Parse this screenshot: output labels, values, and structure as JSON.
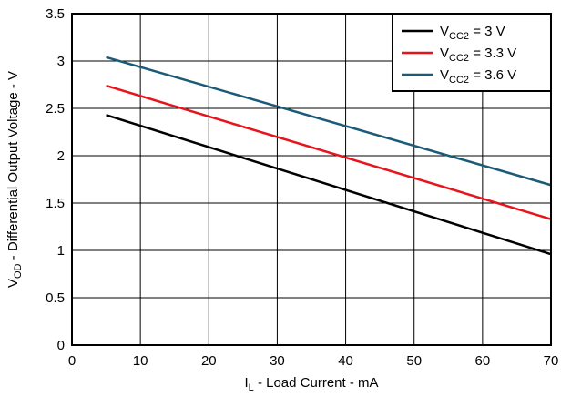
{
  "chart_data": {
    "type": "line",
    "title": "",
    "xlabel": {
      "main": "I",
      "sub": "L",
      "rest": " - Load Current - mA"
    },
    "ylabel": {
      "main": "V",
      "sub": "OD",
      "rest": " - Differential Output Voltage - V"
    },
    "xlim": [
      0,
      70
    ],
    "ylim": [
      0,
      3.5
    ],
    "xticks": [
      0,
      10,
      20,
      30,
      40,
      50,
      60,
      70
    ],
    "yticks": [
      0,
      0.5,
      1,
      1.5,
      2,
      2.5,
      3,
      3.5
    ],
    "xtick_labels": [
      "0",
      "10",
      "20",
      "30",
      "40",
      "50",
      "60",
      "70"
    ],
    "ytick_labels": [
      "0",
      "0.5",
      "1",
      "1.5",
      "2",
      "2.5",
      "3",
      "3.5"
    ],
    "grid": true,
    "legend_position": "top-right",
    "series": [
      {
        "label_main": "V",
        "label_sub": "CC2",
        "label_rest": " = 3 V",
        "color": "#000000",
        "x": [
          5,
          70
        ],
        "y": [
          2.43,
          0.96
        ]
      },
      {
        "label_main": "V",
        "label_sub": "CC2",
        "label_rest": " = 3.3 V",
        "color": "#e8141c",
        "x": [
          5,
          70
        ],
        "y": [
          2.74,
          1.33
        ]
      },
      {
        "label_main": "V",
        "label_sub": "CC2",
        "label_rest": " = 3.6 V",
        "color": "#1c5b78",
        "x": [
          5,
          70
        ],
        "y": [
          3.04,
          1.69
        ]
      }
    ]
  }
}
